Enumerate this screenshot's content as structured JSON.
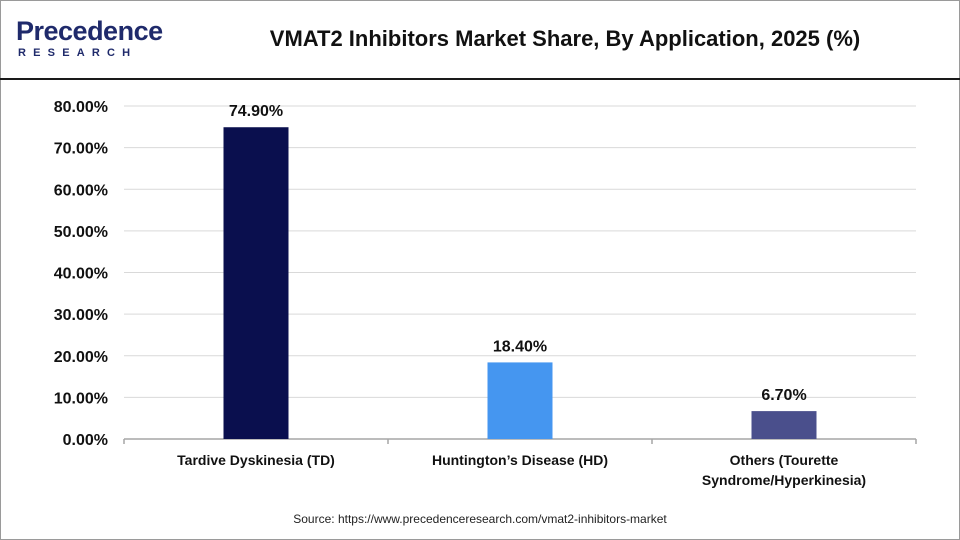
{
  "logo": {
    "word": "Precedence",
    "sub": "RESEARCH"
  },
  "title": "VMAT2 Inhibitors Market Share, By Application, 2025 (%)",
  "source": "Source: https://www.precedenceresearch.com/vmat2-inhibitors-market",
  "colors": {
    "td": "#0a0f4e",
    "hd": "#4596f0",
    "others": "#4a4f8c",
    "title": "#111111",
    "logo": "#1f2a6b"
  },
  "chart_data": {
    "type": "bar",
    "title": "VMAT2 Inhibitors Market Share, By Application, 2025 (%)",
    "categories": [
      [
        "Tardive Dyskinesia (TD)"
      ],
      [
        "Huntington’s Disease (HD)"
      ],
      [
        "Others (Tourette",
        "Syndrome/Hyperkinesia)"
      ]
    ],
    "values": [
      74.9,
      18.4,
      6.7
    ],
    "value_labels": [
      "74.90%",
      "18.40%",
      "6.70%"
    ],
    "bar_colors": [
      "#0a0f4e",
      "#4596f0",
      "#4a4f8c"
    ],
    "ylim": [
      0,
      80
    ],
    "yticks": [
      0,
      10,
      20,
      30,
      40,
      50,
      60,
      70,
      80
    ],
    "ytick_labels": [
      "0.00%",
      "10.00%",
      "20.00%",
      "30.00%",
      "40.00%",
      "50.00%",
      "60.00%",
      "70.00%",
      "80.00%"
    ],
    "grid": true,
    "legend": "none"
  }
}
